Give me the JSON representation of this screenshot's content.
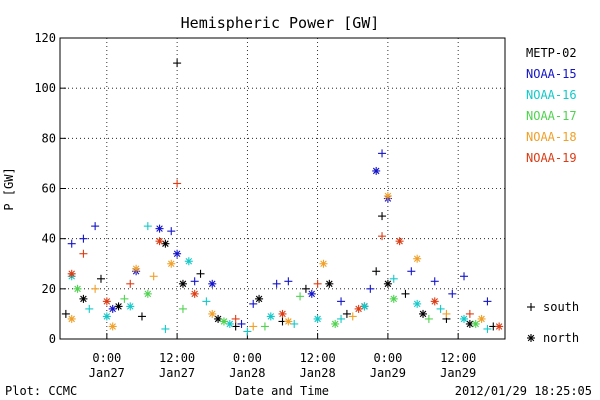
{
  "chart_data": {
    "type": "scatter",
    "title": "Hemispheric Power [GW]",
    "ylabel": "P [GW]",
    "xlabel": "Date and Time",
    "footer_left": "Plot: CCMC",
    "footer_right": "2012/01/29 18:25:05",
    "ylim": [
      0,
      120
    ],
    "xlim": [
      "2012-01-26 16:00",
      "2012-01-29 20:00"
    ],
    "grid": true,
    "legend_position": "right",
    "y_ticks": [
      0,
      20,
      40,
      60,
      80,
      100,
      120
    ],
    "x_ticks": [
      {
        "x": "2012-01-27 00:00",
        "label_top": "0:00",
        "label_bottom": "Jan27"
      },
      {
        "x": "2012-01-27 12:00",
        "label_top": "12:00",
        "label_bottom": "Jan27"
      },
      {
        "x": "2012-01-28 00:00",
        "label_top": "0:00",
        "label_bottom": "Jan28"
      },
      {
        "x": "2012-01-28 12:00",
        "label_top": "12:00",
        "label_bottom": "Jan28"
      },
      {
        "x": "2012-01-29 00:00",
        "label_top": "0:00",
        "label_bottom": "Jan29"
      },
      {
        "x": "2012-01-29 12:00",
        "label_top": "12:00",
        "label_bottom": "Jan29"
      }
    ],
    "marker_legend": [
      {
        "symbol": "plus",
        "label": "south"
      },
      {
        "symbol": "asterisk",
        "label": "north"
      }
    ],
    "series": [
      {
        "name": "METP-02",
        "color": "#000000",
        "points": [
          {
            "x": "2012-01-26 17:00",
            "y": 10,
            "m": "plus"
          },
          {
            "x": "2012-01-26 20:00",
            "y": 16,
            "m": "asterisk"
          },
          {
            "x": "2012-01-26 23:00",
            "y": 24,
            "m": "plus"
          },
          {
            "x": "2012-01-27 02:00",
            "y": 13,
            "m": "asterisk"
          },
          {
            "x": "2012-01-27 06:00",
            "y": 9,
            "m": "plus"
          },
          {
            "x": "2012-01-27 10:00",
            "y": 38,
            "m": "asterisk"
          },
          {
            "x": "2012-01-27 12:00",
            "y": 110,
            "m": "plus"
          },
          {
            "x": "2012-01-27 13:00",
            "y": 22,
            "m": "asterisk"
          },
          {
            "x": "2012-01-27 16:00",
            "y": 26,
            "m": "plus"
          },
          {
            "x": "2012-01-27 19:00",
            "y": 8,
            "m": "asterisk"
          },
          {
            "x": "2012-01-27 22:00",
            "y": 5,
            "m": "plus"
          },
          {
            "x": "2012-01-28 02:00",
            "y": 16,
            "m": "asterisk"
          },
          {
            "x": "2012-01-28 06:00",
            "y": 7,
            "m": "plus"
          },
          {
            "x": "2012-01-28 10:00",
            "y": 20,
            "m": "plus"
          },
          {
            "x": "2012-01-28 14:00",
            "y": 22,
            "m": "asterisk"
          },
          {
            "x": "2012-01-28 17:00",
            "y": 10,
            "m": "plus"
          },
          {
            "x": "2012-01-28 20:00",
            "y": 13,
            "m": "asterisk"
          },
          {
            "x": "2012-01-28 22:00",
            "y": 27,
            "m": "plus"
          },
          {
            "x": "2012-01-28 23:00",
            "y": 49,
            "m": "plus"
          },
          {
            "x": "2012-01-29 00:00",
            "y": 22,
            "m": "asterisk"
          },
          {
            "x": "2012-01-29 03:00",
            "y": 18,
            "m": "plus"
          },
          {
            "x": "2012-01-29 06:00",
            "y": 10,
            "m": "asterisk"
          },
          {
            "x": "2012-01-29 10:00",
            "y": 8,
            "m": "plus"
          },
          {
            "x": "2012-01-29 14:00",
            "y": 6,
            "m": "asterisk"
          },
          {
            "x": "2012-01-29 18:00",
            "y": 5,
            "m": "plus"
          }
        ]
      },
      {
        "name": "NOAA-15",
        "color": "#1414c8",
        "points": [
          {
            "x": "2012-01-26 18:00",
            "y": 38,
            "m": "plus"
          },
          {
            "x": "2012-01-26 20:00",
            "y": 40,
            "m": "plus"
          },
          {
            "x": "2012-01-26 22:00",
            "y": 45,
            "m": "plus"
          },
          {
            "x": "2012-01-27 01:00",
            "y": 12,
            "m": "asterisk"
          },
          {
            "x": "2012-01-27 05:00",
            "y": 27,
            "m": "asterisk"
          },
          {
            "x": "2012-01-27 09:00",
            "y": 44,
            "m": "asterisk"
          },
          {
            "x": "2012-01-27 11:00",
            "y": 43,
            "m": "plus"
          },
          {
            "x": "2012-01-27 12:00",
            "y": 34,
            "m": "asterisk"
          },
          {
            "x": "2012-01-27 15:00",
            "y": 23,
            "m": "plus"
          },
          {
            "x": "2012-01-27 18:00",
            "y": 22,
            "m": "asterisk"
          },
          {
            "x": "2012-01-27 23:00",
            "y": 6,
            "m": "plus"
          },
          {
            "x": "2012-01-28 01:00",
            "y": 14,
            "m": "plus"
          },
          {
            "x": "2012-01-28 05:00",
            "y": 22,
            "m": "plus"
          },
          {
            "x": "2012-01-28 07:00",
            "y": 23,
            "m": "plus"
          },
          {
            "x": "2012-01-28 11:00",
            "y": 18,
            "m": "asterisk"
          },
          {
            "x": "2012-01-28 16:00",
            "y": 15,
            "m": "plus"
          },
          {
            "x": "2012-01-28 21:00",
            "y": 20,
            "m": "plus"
          },
          {
            "x": "2012-01-28 22:00",
            "y": 67,
            "m": "asterisk"
          },
          {
            "x": "2012-01-28 23:00",
            "y": 74,
            "m": "plus"
          },
          {
            "x": "2012-01-29 00:00",
            "y": 56,
            "m": "asterisk"
          },
          {
            "x": "2012-01-29 04:00",
            "y": 27,
            "m": "plus"
          },
          {
            "x": "2012-01-29 08:00",
            "y": 23,
            "m": "plus"
          },
          {
            "x": "2012-01-29 11:00",
            "y": 18,
            "m": "plus"
          },
          {
            "x": "2012-01-29 13:00",
            "y": 25,
            "m": "plus"
          },
          {
            "x": "2012-01-29 17:00",
            "y": 15,
            "m": "plus"
          }
        ]
      },
      {
        "name": "NOAA-16",
        "color": "#14c8c8",
        "points": [
          {
            "x": "2012-01-26 18:00",
            "y": 25,
            "m": "asterisk"
          },
          {
            "x": "2012-01-26 21:00",
            "y": 12,
            "m": "plus"
          },
          {
            "x": "2012-01-27 00:00",
            "y": 9,
            "m": "asterisk"
          },
          {
            "x": "2012-01-27 04:00",
            "y": 13,
            "m": "asterisk"
          },
          {
            "x": "2012-01-27 07:00",
            "y": 45,
            "m": "plus"
          },
          {
            "x": "2012-01-27 10:00",
            "y": 4,
            "m": "plus"
          },
          {
            "x": "2012-01-27 14:00",
            "y": 31,
            "m": "asterisk"
          },
          {
            "x": "2012-01-27 17:00",
            "y": 15,
            "m": "plus"
          },
          {
            "x": "2012-01-27 21:00",
            "y": 6,
            "m": "asterisk"
          },
          {
            "x": "2012-01-28 00:00",
            "y": 3,
            "m": "plus"
          },
          {
            "x": "2012-01-28 04:00",
            "y": 9,
            "m": "asterisk"
          },
          {
            "x": "2012-01-28 08:00",
            "y": 6,
            "m": "plus"
          },
          {
            "x": "2012-01-28 12:00",
            "y": 8,
            "m": "asterisk"
          },
          {
            "x": "2012-01-28 16:00",
            "y": 8,
            "m": "plus"
          },
          {
            "x": "2012-01-28 20:00",
            "y": 13,
            "m": "asterisk"
          },
          {
            "x": "2012-01-29 01:00",
            "y": 24,
            "m": "plus"
          },
          {
            "x": "2012-01-29 05:00",
            "y": 14,
            "m": "asterisk"
          },
          {
            "x": "2012-01-29 09:00",
            "y": 12,
            "m": "plus"
          },
          {
            "x": "2012-01-29 13:00",
            "y": 8,
            "m": "asterisk"
          },
          {
            "x": "2012-01-29 17:00",
            "y": 4,
            "m": "plus"
          }
        ]
      },
      {
        "name": "NOAA-17",
        "color": "#50d250",
        "points": [
          {
            "x": "2012-01-26 19:00",
            "y": 20,
            "m": "asterisk"
          },
          {
            "x": "2012-01-27 03:00",
            "y": 16,
            "m": "plus"
          },
          {
            "x": "2012-01-27 07:00",
            "y": 18,
            "m": "asterisk"
          },
          {
            "x": "2012-01-27 13:00",
            "y": 12,
            "m": "plus"
          },
          {
            "x": "2012-01-27 20:00",
            "y": 7,
            "m": "asterisk"
          },
          {
            "x": "2012-01-28 03:00",
            "y": 5,
            "m": "plus"
          },
          {
            "x": "2012-01-28 09:00",
            "y": 17,
            "m": "plus"
          },
          {
            "x": "2012-01-28 15:00",
            "y": 6,
            "m": "asterisk"
          },
          {
            "x": "2012-01-29 01:00",
            "y": 16,
            "m": "asterisk"
          },
          {
            "x": "2012-01-29 07:00",
            "y": 8,
            "m": "plus"
          },
          {
            "x": "2012-01-29 15:00",
            "y": 6,
            "m": "asterisk"
          }
        ]
      },
      {
        "name": "NOAA-18",
        "color": "#f0a028",
        "points": [
          {
            "x": "2012-01-26 18:00",
            "y": 8,
            "m": "asterisk"
          },
          {
            "x": "2012-01-26 22:00",
            "y": 20,
            "m": "plus"
          },
          {
            "x": "2012-01-27 01:00",
            "y": 5,
            "m": "asterisk"
          },
          {
            "x": "2012-01-27 05:00",
            "y": 28,
            "m": "asterisk"
          },
          {
            "x": "2012-01-27 08:00",
            "y": 25,
            "m": "plus"
          },
          {
            "x": "2012-01-27 11:00",
            "y": 30,
            "m": "asterisk"
          },
          {
            "x": "2012-01-27 18:00",
            "y": 10,
            "m": "asterisk"
          },
          {
            "x": "2012-01-28 01:00",
            "y": 5,
            "m": "plus"
          },
          {
            "x": "2012-01-28 07:00",
            "y": 7,
            "m": "asterisk"
          },
          {
            "x": "2012-01-28 13:00",
            "y": 30,
            "m": "asterisk"
          },
          {
            "x": "2012-01-28 18:00",
            "y": 9,
            "m": "plus"
          },
          {
            "x": "2012-01-29 00:00",
            "y": 57,
            "m": "asterisk"
          },
          {
            "x": "2012-01-29 05:00",
            "y": 32,
            "m": "asterisk"
          },
          {
            "x": "2012-01-29 10:00",
            "y": 10,
            "m": "plus"
          },
          {
            "x": "2012-01-29 16:00",
            "y": 8,
            "m": "asterisk"
          }
        ]
      },
      {
        "name": "NOAA-19",
        "color": "#dc3c14",
        "points": [
          {
            "x": "2012-01-26 18:00",
            "y": 26,
            "m": "asterisk"
          },
          {
            "x": "2012-01-26 20:00",
            "y": 34,
            "m": "plus"
          },
          {
            "x": "2012-01-27 00:00",
            "y": 15,
            "m": "asterisk"
          },
          {
            "x": "2012-01-27 04:00",
            "y": 22,
            "m": "plus"
          },
          {
            "x": "2012-01-27 09:00",
            "y": 39,
            "m": "asterisk"
          },
          {
            "x": "2012-01-27 12:00",
            "y": 62,
            "m": "plus"
          },
          {
            "x": "2012-01-27 15:00",
            "y": 18,
            "m": "asterisk"
          },
          {
            "x": "2012-01-27 22:00",
            "y": 8,
            "m": "plus"
          },
          {
            "x": "2012-01-28 06:00",
            "y": 10,
            "m": "asterisk"
          },
          {
            "x": "2012-01-28 12:00",
            "y": 22,
            "m": "plus"
          },
          {
            "x": "2012-01-28 19:00",
            "y": 12,
            "m": "asterisk"
          },
          {
            "x": "2012-01-28 23:00",
            "y": 41,
            "m": "plus"
          },
          {
            "x": "2012-01-29 02:00",
            "y": 39,
            "m": "asterisk"
          },
          {
            "x": "2012-01-29 08:00",
            "y": 15,
            "m": "asterisk"
          },
          {
            "x": "2012-01-29 14:00",
            "y": 10,
            "m": "plus"
          },
          {
            "x": "2012-01-29 19:00",
            "y": 5,
            "m": "asterisk"
          }
        ]
      }
    ]
  }
}
